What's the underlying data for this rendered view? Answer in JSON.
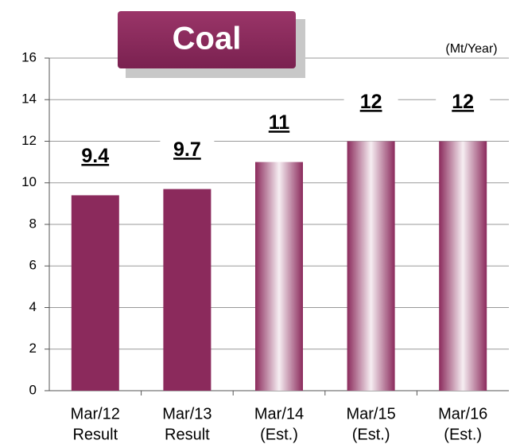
{
  "chart_data": {
    "type": "bar",
    "title": "Coal",
    "unit_label": "(Mt/Year)",
    "categories": [
      [
        "Mar/12",
        "Result"
      ],
      [
        "Mar/13",
        "Result"
      ],
      [
        "Mar/14",
        "(Est.)"
      ],
      [
        "Mar/15",
        "(Est.)"
      ],
      [
        "Mar/16",
        "(Est.)"
      ]
    ],
    "values": [
      9.4,
      9.7,
      11,
      12,
      12
    ],
    "color": "#8b2a5c",
    "fills": [
      "solid",
      "solid",
      "gradient",
      "gradient",
      "gradient"
    ],
    "ylim": [
      0,
      16
    ],
    "yticks": [
      0,
      2,
      4,
      6,
      8,
      10,
      12,
      14,
      16
    ],
    "grid": true
  }
}
